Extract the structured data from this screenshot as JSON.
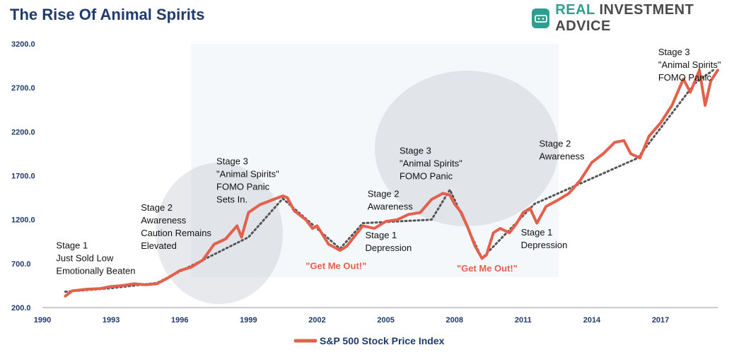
{
  "header": {
    "title": "The Rise Of Animal Spirits",
    "brand_accent": "REAL",
    "brand_rest": "INVESTMENT ADVICE",
    "brand_icon": "chart-badge-icon"
  },
  "colors": {
    "title": "#1f3a6b",
    "line": "#e5604c",
    "axis_text": "#1f3a6b",
    "annotation_red": "#e5604c",
    "annotation_dark": "#111111",
    "trend": "#555555",
    "brand": "#2e9e8f"
  },
  "chart_data": {
    "type": "line",
    "title": "The Rise Of Animal Spirits",
    "xlabel": "",
    "ylabel": "",
    "xlim": [
      1990,
      2019.5
    ],
    "ylim": [
      200,
      3200
    ],
    "x_ticks": [
      "1990",
      "1993",
      "1996",
      "1999",
      "2002",
      "2005",
      "2008",
      "2011",
      "2014",
      "2017"
    ],
    "y_ticks": [
      "3200.0",
      "2700.0",
      "2200.0",
      "1700.0",
      "1200.0",
      "700.0",
      "200.0"
    ],
    "grid": false,
    "legend_position": "bottom",
    "series": [
      {
        "name": "S&P 500 Stock Price Index",
        "color": "#e5604c",
        "x": [
          1991.0,
          1991.3,
          1992.0,
          1992.5,
          1993.0,
          1993.5,
          1994.0,
          1994.5,
          1995.0,
          1995.5,
          1996.0,
          1996.5,
          1997.0,
          1997.5,
          1998.0,
          1998.5,
          1998.7,
          1999.0,
          1999.5,
          2000.0,
          2000.5,
          2000.7,
          2001.0,
          2001.5,
          2001.8,
          2002.0,
          2002.5,
          2002.8,
          2003.0,
          2003.3,
          2003.6,
          2004.0,
          2004.5,
          2005.0,
          2005.5,
          2006.0,
          2006.5,
          2007.0,
          2007.5,
          2007.8,
          2008.0,
          2008.3,
          2008.6,
          2008.9,
          2009.2,
          2009.4,
          2009.7,
          2010.0,
          2010.4,
          2010.7,
          2011.0,
          2011.3,
          2011.6,
          2012.0,
          2012.5,
          2013.0,
          2013.5,
          2014.0,
          2014.5,
          2015.0,
          2015.4,
          2015.7,
          2016.1,
          2016.5,
          2017.0,
          2017.5,
          2018.0,
          2018.3,
          2018.7,
          2018.95,
          2019.2,
          2019.5
        ],
        "values": [
          330,
          390,
          410,
          415,
          440,
          450,
          470,
          460,
          470,
          540,
          620,
          660,
          740,
          920,
          980,
          1130,
          1000,
          1280,
          1370,
          1420,
          1470,
          1450,
          1300,
          1200,
          1100,
          1130,
          920,
          880,
          850,
          900,
          1000,
          1130,
          1100,
          1180,
          1200,
          1260,
          1280,
          1430,
          1500,
          1480,
          1380,
          1280,
          1100,
          900,
          760,
          800,
          1050,
          1100,
          1050,
          1150,
          1280,
          1330,
          1160,
          1350,
          1420,
          1500,
          1650,
          1850,
          1950,
          2080,
          2100,
          1950,
          1900,
          2150,
          2300,
          2500,
          2800,
          2650,
          2900,
          2500,
          2780,
          2900
        ]
      }
    ],
    "trend_x": [
      1991.0,
      1993.0,
      1995.0,
      1999.0,
      2000.5,
      2003.0,
      2004.0,
      2007.0,
      2007.8,
      2009.2,
      2011.5,
      2016.0,
      2018.5,
      2019.3
    ],
    "trend_y": [
      380,
      420,
      480,
      1000,
      1440,
      870,
      1160,
      1200,
      1540,
      760,
      1380,
      1900,
      2750,
      2900
    ],
    "annotations": [
      {
        "lines": [
          "Stage 1",
          "Just Sold Low",
          "Emotionally Beaten"
        ],
        "x": 1990.6,
        "y": 870,
        "color": "dark"
      },
      {
        "lines": [
          "Stage 2",
          "Awareness",
          "Caution Remains",
          "Elevated"
        ],
        "x": 1994.3,
        "y": 1300,
        "color": "dark"
      },
      {
        "lines": [
          "Stage 3",
          "\"Animal Spirits\"",
          "FOMO Panic",
          "Sets In."
        ],
        "x": 1997.6,
        "y": 1830,
        "color": "dark"
      },
      {
        "lines": [
          "\"Get Me Out!\""
        ],
        "x": 2001.5,
        "y": 640,
        "color": "red"
      },
      {
        "lines": [
          "Stage 1",
          "Depression"
        ],
        "x": 2004.1,
        "y": 990,
        "color": "dark"
      },
      {
        "lines": [
          "Stage 2",
          "Awareness"
        ],
        "x": 2004.2,
        "y": 1460,
        "color": "dark"
      },
      {
        "lines": [
          "Stage 3",
          "\"Animal Spirits\"",
          "FOMO Panic"
        ],
        "x": 2005.6,
        "y": 1950,
        "color": "dark"
      },
      {
        "lines": [
          "\"Get Me Out!\""
        ],
        "x": 2008.1,
        "y": 610,
        "color": "red"
      },
      {
        "lines": [
          "Stage 1",
          "Depression"
        ],
        "x": 2010.9,
        "y": 1020,
        "color": "dark"
      },
      {
        "lines": [
          "Stage 2",
          "Awareness"
        ],
        "x": 2011.7,
        "y": 2030,
        "color": "dark"
      },
      {
        "lines": [
          "Stage 3",
          "\"Animal Spirits\"",
          "FOMO Panic"
        ],
        "x": 2016.9,
        "y": 3070,
        "color": "dark"
      }
    ]
  }
}
